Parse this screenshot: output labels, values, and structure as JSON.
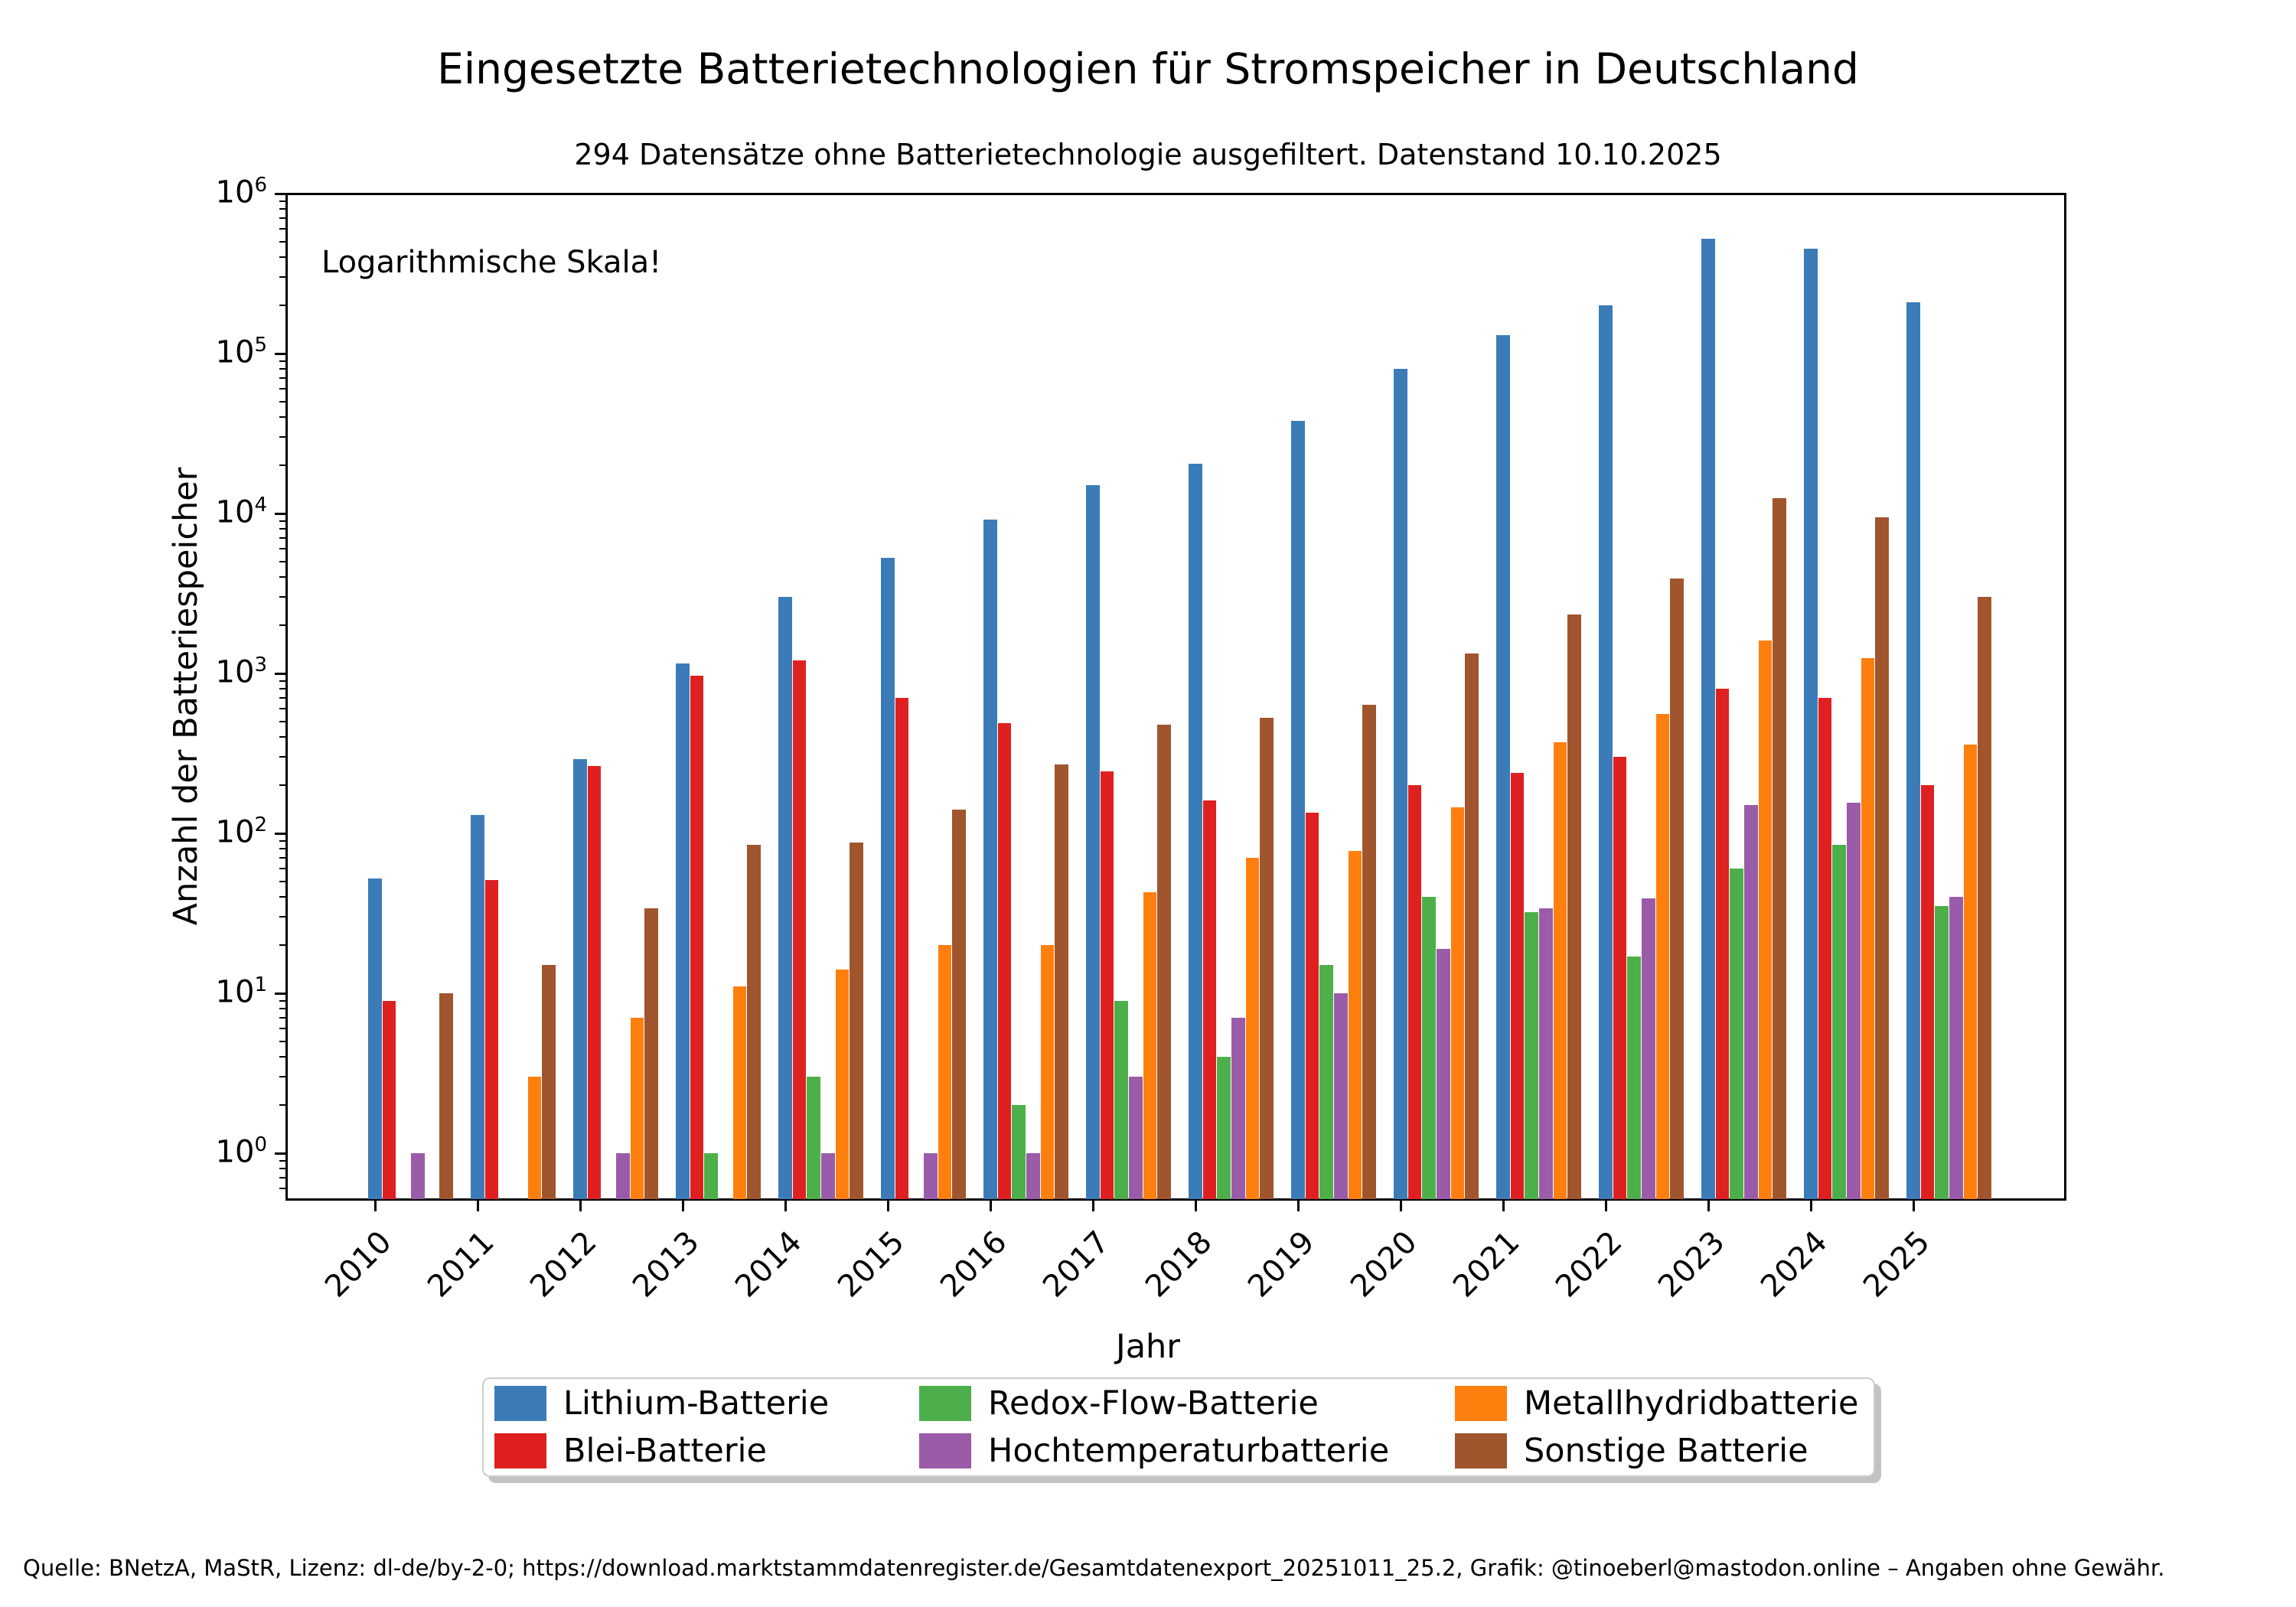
{
  "title": "Eingesetzte Batterietechnologien für Stromspeicher in Deutschland",
  "subtitle": "294 Datensätze ohne Batterietechnologie ausgefiltert. Datenstand 10.10.2025",
  "annotation": "Logarithmische Skala!",
  "x_axis": {
    "label": "Jahr"
  },
  "y_axis": {
    "label": "Anzahl der Batteriespeicher",
    "tick_exponents": [
      0,
      1,
      2,
      3,
      4,
      5,
      6
    ]
  },
  "footer": "Quelle: BNetzA, MaStR, Lizenz: dl-de/by-2-0; https://download.marktstammdatenregister.de/Gesamtdatenexport_20251011_25.2, Grafik: @tinoeberl@mastodon.online – Angaben ohne Gewähr.",
  "chart_data": {
    "type": "bar",
    "log_scale": true,
    "ylim": [
      0.5,
      1000000
    ],
    "title": "Eingesetzte Batterietechnologien für Stromspeicher in Deutschland",
    "xlabel": "Jahr",
    "ylabel": "Anzahl der Batteriespeicher",
    "legend_position": "bottom-center",
    "categories": [
      "2010",
      "2011",
      "2012",
      "2013",
      "2014",
      "2015",
      "2016",
      "2017",
      "2018",
      "2019",
      "2020",
      "2021",
      "2022",
      "2023",
      "2024",
      "2025"
    ],
    "series": [
      {
        "name": "Lithium-Batterie",
        "color": "#3b7cb8",
        "values": [
          52,
          130,
          290,
          1150,
          3000,
          5300,
          9200,
          15000,
          20500,
          38000,
          80000,
          130000,
          200000,
          520000,
          450000,
          210000
        ]
      },
      {
        "name": "Blei-Batterie",
        "color": "#df2020",
        "values": [
          9,
          51,
          265,
          970,
          1200,
          700,
          490,
          245,
          160,
          135,
          200,
          240,
          300,
          800,
          700,
          200
        ]
      },
      {
        "name": "Redox-Flow-Batterie",
        "color": "#4daf4a",
        "values": [
          0,
          0,
          0,
          1,
          3,
          0,
          2,
          9,
          4,
          15,
          40,
          32,
          17,
          60,
          85,
          35
        ]
      },
      {
        "name": "Hochtemperaturbatterie",
        "color": "#9a5ca8",
        "values": [
          1,
          0,
          1,
          0,
          1,
          1,
          1,
          3,
          7,
          10,
          19,
          34,
          39,
          150,
          155,
          40
        ]
      },
      {
        "name": "Metallhydridbatterie",
        "color": "#ff7f0e",
        "values": [
          0,
          3,
          7,
          11,
          14,
          20,
          20,
          43,
          70,
          78,
          145,
          370,
          560,
          1600,
          1250,
          360
        ]
      },
      {
        "name": "Sonstige Batterie",
        "color": "#a0552d",
        "values": [
          10,
          15,
          34,
          85,
          88,
          140,
          270,
          480,
          530,
          640,
          1330,
          2330,
          3900,
          12500,
          9500,
          3000
        ]
      }
    ],
    "legend_display_order": [
      0,
      2,
      4,
      1,
      3,
      5
    ]
  }
}
